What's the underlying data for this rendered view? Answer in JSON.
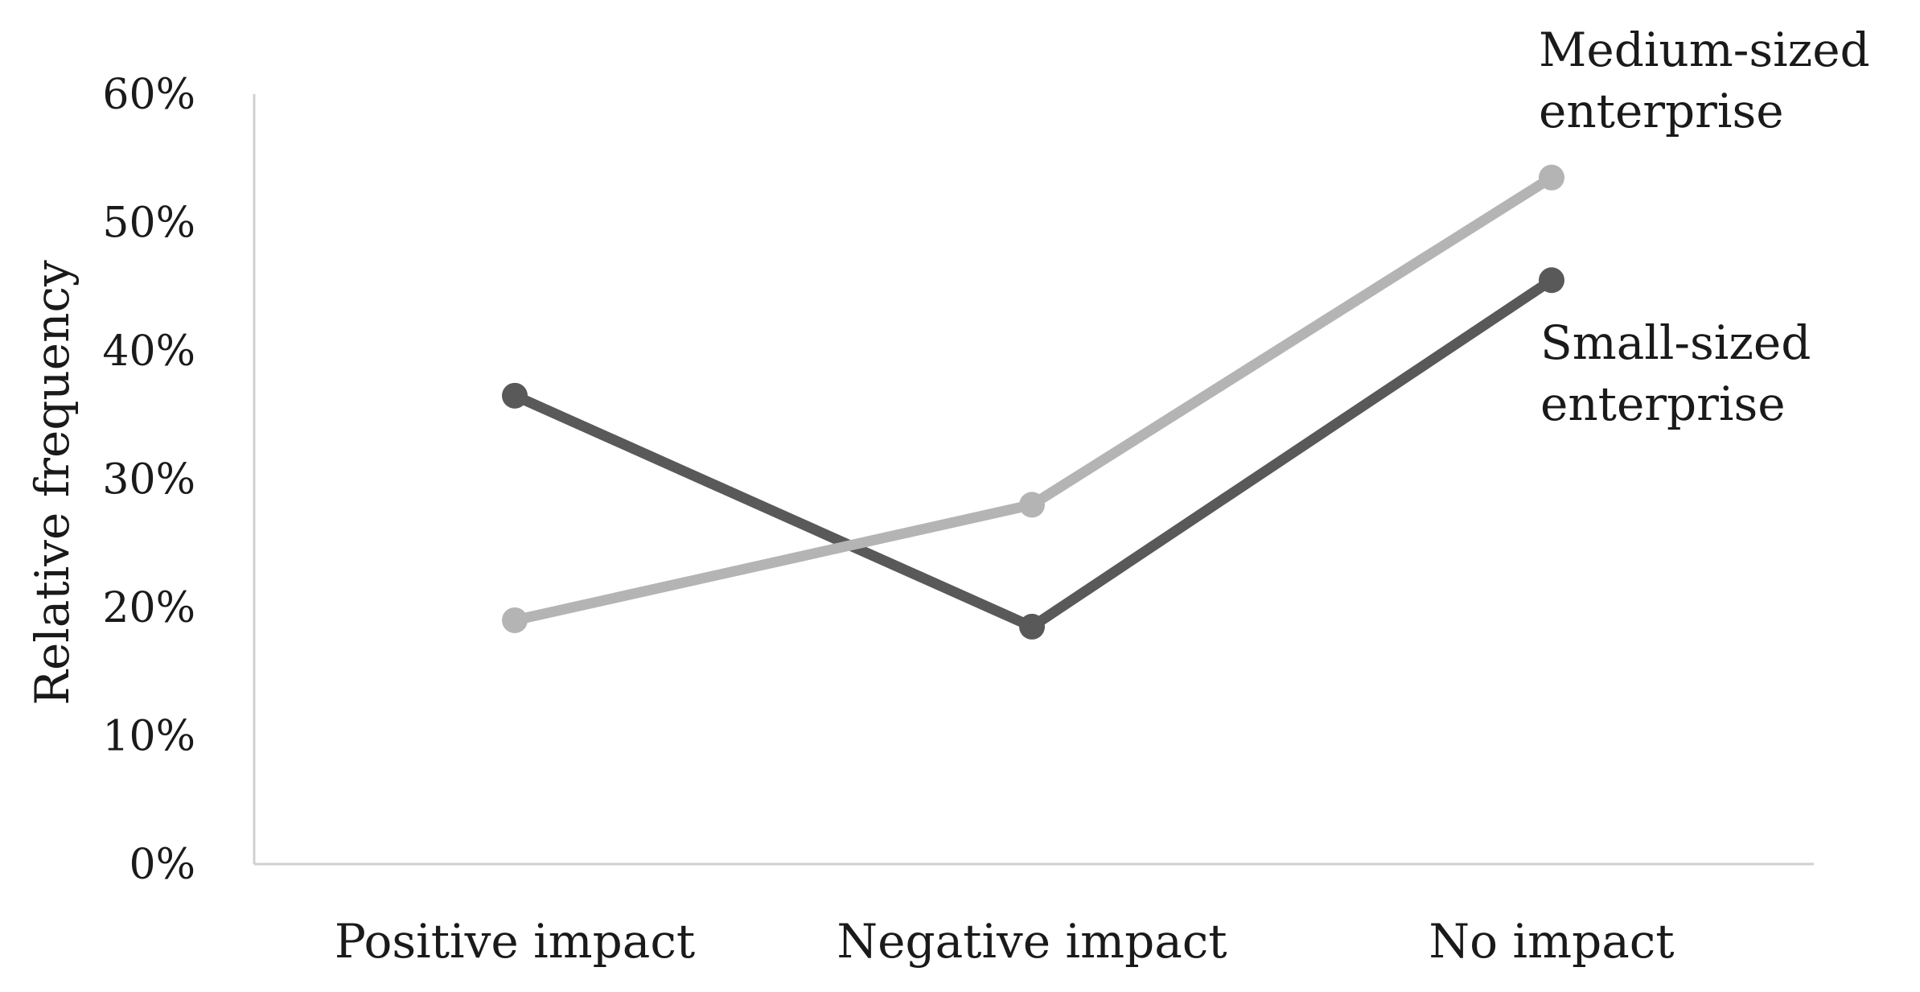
{
  "chart_data": {
    "type": "line",
    "title": "",
    "xlabel": "",
    "ylabel": "Relative frequency",
    "categories": [
      "Positive impact",
      "Negative impact",
      "No impact"
    ],
    "ylim": [
      0,
      60
    ],
    "yticks": [
      "0%",
      "10%",
      "20%",
      "30%",
      "40%",
      "50%",
      "60%"
    ],
    "grid": false,
    "legend": "inline-right",
    "series": [
      {
        "name": "Small-sized enterprise",
        "label_lines": [
          "Small-sized",
          "enterprise"
        ],
        "values": [
          36.5,
          18.5,
          45.5
        ],
        "color": "#595959"
      },
      {
        "name": "Medium-sized enterprise",
        "label_lines": [
          "Medium-sized",
          "enterprise"
        ],
        "values": [
          19,
          28,
          53.5
        ],
        "color": "#b4b4b4"
      }
    ]
  }
}
